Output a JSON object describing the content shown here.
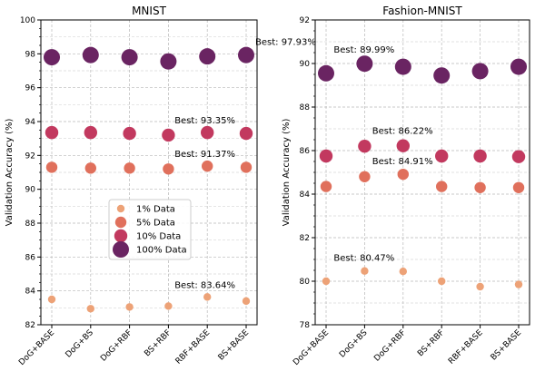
{
  "chart_data": [
    {
      "type": "scatter",
      "title": "MNIST",
      "ylabel": "Validation Accuracy (%)",
      "xlabel": "",
      "ylim": [
        82,
        100
      ],
      "yticks": [
        82,
        84,
        86,
        88,
        90,
        92,
        94,
        96,
        98,
        100
      ],
      "categories": [
        "DoG+BASE",
        "DoG+BS",
        "DoG+RBF",
        "BS+RBF",
        "RBF+BASE",
        "BS+BASE"
      ],
      "grid": true,
      "legend_placement": "center",
      "series": [
        {
          "name": "1% Data",
          "color": "#eda277",
          "values": [
            83.5,
            82.95,
            83.05,
            83.1,
            83.64,
            83.4
          ]
        },
        {
          "name": "5% Data",
          "color": "#e0705c",
          "values": [
            91.3,
            91.25,
            91.25,
            91.2,
            91.37,
            91.3
          ]
        },
        {
          "name": "10% Data",
          "color": "#c2395f",
          "values": [
            93.35,
            93.35,
            93.3,
            93.2,
            93.35,
            93.3
          ]
        },
        {
          "name": "100% Data",
          "color": "#6a2462",
          "values": [
            97.8,
            97.93,
            97.8,
            97.55,
            97.85,
            97.93
          ]
        }
      ],
      "annotations": [
        {
          "text": "Best: 97.93%",
          "x": "BS+BASE",
          "y": 97.93
        },
        {
          "text": "Best: 93.35%",
          "x": "RBF+BASE",
          "y": 93.35
        },
        {
          "text": "Best: 91.37%",
          "x": "RBF+BASE",
          "y": 91.37
        },
        {
          "text": "Best: 83.64%",
          "x": "RBF+BASE",
          "y": 83.64
        }
      ]
    },
    {
      "type": "scatter",
      "title": "Fashion-MNIST",
      "ylabel": "Validation Accuracy (%)",
      "xlabel": "",
      "ylim": [
        78,
        92
      ],
      "yticks": [
        78,
        80,
        82,
        84,
        86,
        88,
        90,
        92
      ],
      "categories": [
        "DoG+BASE",
        "DoG+BS",
        "DoG+RBF",
        "BS+RBF",
        "RBF+BASE",
        "BS+BASE"
      ],
      "grid": true,
      "series": [
        {
          "name": "1% Data",
          "color": "#eda277",
          "values": [
            80.0,
            80.47,
            80.45,
            80.0,
            79.75,
            79.85
          ]
        },
        {
          "name": "5% Data",
          "color": "#e0705c",
          "values": [
            84.35,
            84.8,
            84.91,
            84.35,
            84.3,
            84.3
          ]
        },
        {
          "name": "10% Data",
          "color": "#c2395f",
          "values": [
            85.75,
            86.2,
            86.22,
            85.75,
            85.75,
            85.72
          ]
        },
        {
          "name": "100% Data",
          "color": "#6a2462",
          "values": [
            89.55,
            89.99,
            89.85,
            89.45,
            89.65,
            89.85
          ]
        }
      ],
      "annotations": [
        {
          "text": "Best: 89.99%",
          "x": "DoG+BS",
          "y": 89.99
        },
        {
          "text": "Best: 86.22%",
          "x": "DoG+RBF",
          "y": 86.22
        },
        {
          "text": "Best: 84.91%",
          "x": "DoG+RBF",
          "y": 84.91
        },
        {
          "text": "Best: 80.47%",
          "x": "DoG+BS",
          "y": 80.47
        }
      ]
    }
  ]
}
